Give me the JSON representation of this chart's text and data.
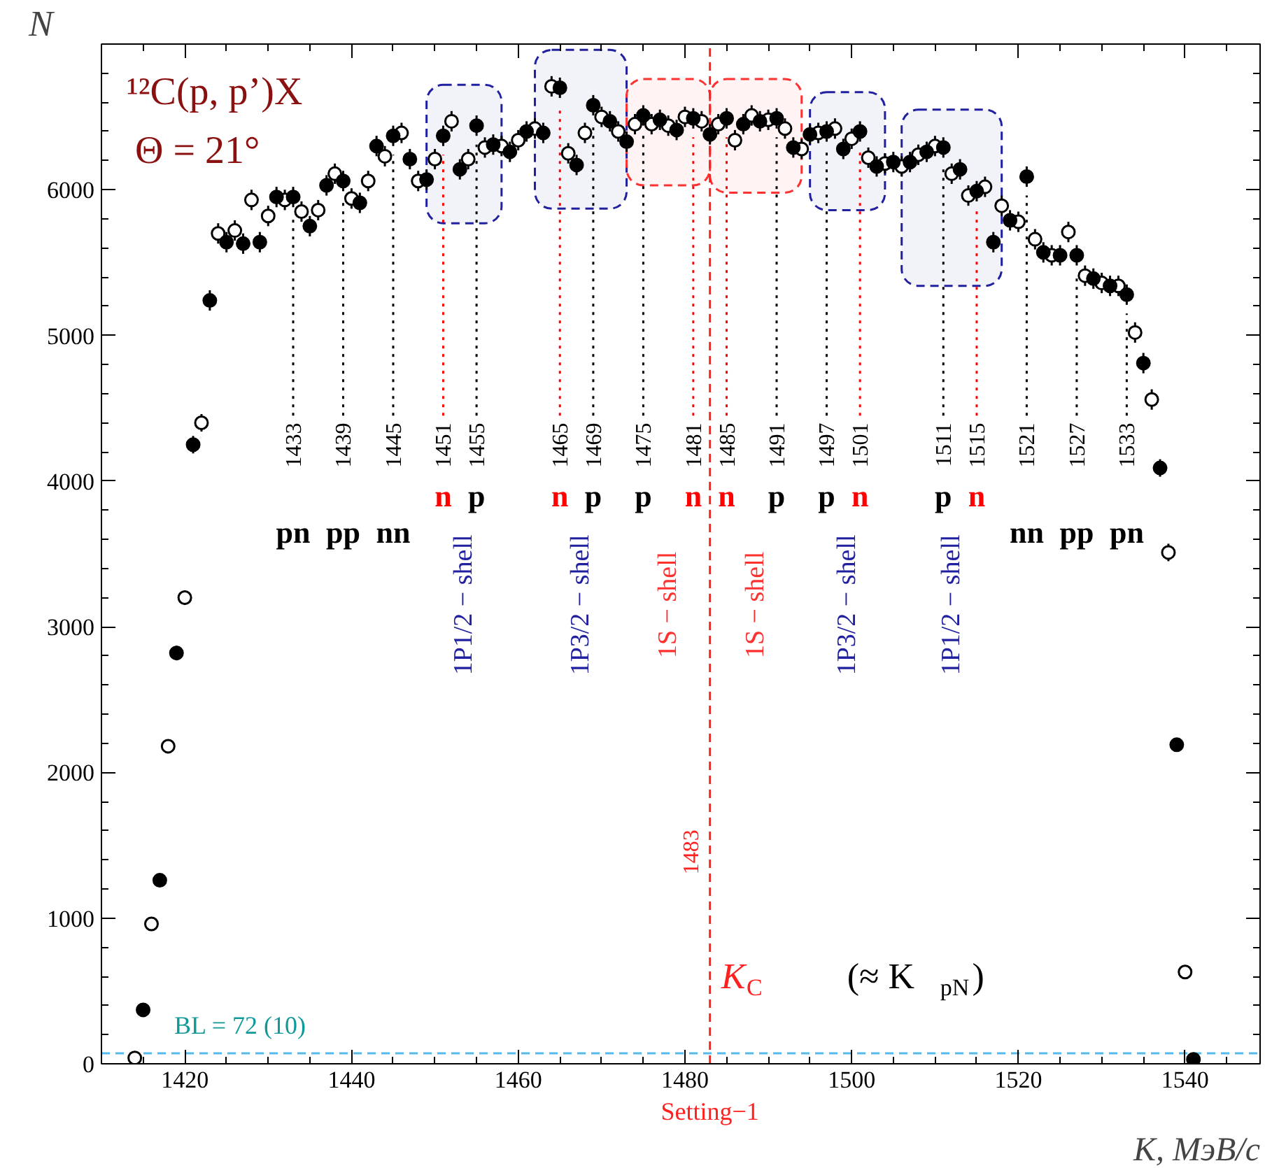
{
  "chart_data": {
    "type": "scatter",
    "title": "¹²C(p, p’)X",
    "subtitle": "Θ = 21°",
    "xlabel": "K, МэВ/c",
    "ylabel": "N",
    "xlim": [
      1410,
      1549
    ],
    "ylim": [
      0,
      7000
    ],
    "xticks": [
      1420,
      1440,
      1460,
      1480,
      1500,
      1520,
      1540
    ],
    "yticks": [
      0,
      1000,
      2000,
      3000,
      4000,
      5000,
      6000
    ],
    "marker": "circle",
    "grid": false,
    "series": [
      {
        "color": "#ffffff",
        "x": [
          1414,
          1416,
          1418,
          1420,
          1422,
          1424,
          1426,
          1428,
          1430,
          1432,
          1434,
          1436,
          1438,
          1440,
          1442,
          1444,
          1446,
          1448,
          1450,
          1452,
          1454,
          1456,
          1458,
          1460,
          1462,
          1464,
          1466,
          1468,
          1470,
          1472,
          1474,
          1476,
          1478,
          1480,
          1482,
          1484,
          1486,
          1488,
          1490,
          1492,
          1494,
          1496,
          1498,
          1500,
          1502,
          1504,
          1506,
          1508,
          1510,
          1512,
          1514,
          1516,
          1518,
          1520,
          1522,
          1524,
          1526,
          1528,
          1530,
          1532,
          1534,
          1536,
          1538,
          1540
        ],
        "values": [
          40,
          960,
          2180,
          3200,
          4400,
          5700,
          5720,
          5930,
          5820,
          5930,
          5850,
          5860,
          6110,
          5940,
          6060,
          6230,
          6390,
          6060,
          6210,
          6470,
          6210,
          6290,
          6300,
          6340,
          6420,
          6710,
          6250,
          6390,
          6500,
          6400,
          6450,
          6450,
          6440,
          6500,
          6470,
          6450,
          6340,
          6510,
          6480,
          6420,
          6280,
          6390,
          6420,
          6350,
          6220,
          6180,
          6160,
          6240,
          6300,
          6110,
          5960,
          6020,
          5890,
          5780,
          5660,
          5550,
          5710,
          5410,
          5360,
          5340,
          5020,
          4560,
          3510,
          630
        ],
        "errors": [
          20,
          30,
          40,
          50,
          60,
          70,
          70,
          70,
          70,
          70,
          70,
          70,
          70,
          70,
          70,
          70,
          70,
          70,
          70,
          70,
          70,
          70,
          70,
          70,
          70,
          70,
          70,
          70,
          70,
          70,
          70,
          70,
          70,
          70,
          70,
          70,
          70,
          70,
          70,
          70,
          70,
          70,
          70,
          70,
          70,
          70,
          70,
          70,
          70,
          70,
          70,
          70,
          70,
          70,
          70,
          70,
          70,
          70,
          70,
          70,
          70,
          70,
          60,
          30
        ]
      },
      {
        "color": "#000000",
        "x": [
          1415,
          1417,
          1419,
          1421,
          1423,
          1425,
          1427,
          1429,
          1431,
          1433,
          1435,
          1437,
          1439,
          1441,
          1443,
          1445,
          1447,
          1449,
          1451,
          1453,
          1455,
          1457,
          1459,
          1461,
          1463,
          1465,
          1467,
          1469,
          1471,
          1473,
          1475,
          1477,
          1479,
          1481,
          1483,
          1485,
          1487,
          1489,
          1491,
          1493,
          1495,
          1497,
          1499,
          1501,
          1503,
          1505,
          1507,
          1509,
          1511,
          1513,
          1515,
          1517,
          1519,
          1521,
          1523,
          1525,
          1527,
          1529,
          1531,
          1533,
          1535,
          1537,
          1539,
          1541
        ],
        "values": [
          370,
          1260,
          2820,
          4250,
          5240,
          5640,
          5630,
          5640,
          5950,
          5950,
          5750,
          6030,
          6060,
          5910,
          6300,
          6370,
          6210,
          6070,
          6370,
          6140,
          6440,
          6310,
          6260,
          6400,
          6390,
          6700,
          6170,
          6580,
          6470,
          6330,
          6510,
          6480,
          6410,
          6490,
          6380,
          6490,
          6450,
          6470,
          6490,
          6290,
          6380,
          6400,
          6280,
          6400,
          6160,
          6190,
          6190,
          6260,
          6290,
          6140,
          5990,
          5640,
          5790,
          6090,
          5570,
          5550,
          5550,
          5390,
          5340,
          5280,
          4810,
          4090,
          2190,
          30
        ],
        "errors": [
          30,
          40,
          50,
          60,
          70,
          70,
          70,
          70,
          70,
          70,
          70,
          70,
          70,
          70,
          70,
          70,
          70,
          70,
          70,
          70,
          70,
          70,
          70,
          70,
          70,
          70,
          70,
          70,
          70,
          70,
          70,
          70,
          70,
          70,
          70,
          70,
          70,
          70,
          70,
          70,
          70,
          70,
          70,
          70,
          70,
          70,
          70,
          70,
          70,
          70,
          70,
          70,
          70,
          70,
          70,
          70,
          70,
          70,
          70,
          70,
          70,
          60,
          40,
          20
        ]
      }
    ],
    "ref_lines": [
      {
        "axis": "x",
        "value": 1433,
        "label": "1433",
        "color": "#000000",
        "line_style": "dotted"
      },
      {
        "axis": "x",
        "value": 1439,
        "label": "1439",
        "color": "#000000",
        "line_style": "dotted"
      },
      {
        "axis": "x",
        "value": 1445,
        "label": "1445",
        "color": "#000000",
        "line_style": "dotted"
      },
      {
        "axis": "x",
        "value": 1451,
        "label": "1451",
        "color": "#ff0000",
        "line_style": "dotted"
      },
      {
        "axis": "x",
        "value": 1455,
        "label": "1455",
        "color": "#000000",
        "line_style": "dotted"
      },
      {
        "axis": "x",
        "value": 1465,
        "label": "1465",
        "color": "#ff0000",
        "line_style": "dotted"
      },
      {
        "axis": "x",
        "value": 1469,
        "label": "1469",
        "color": "#000000",
        "line_style": "dotted"
      },
      {
        "axis": "x",
        "value": 1475,
        "label": "1475",
        "color": "#000000",
        "line_style": "dotted"
      },
      {
        "axis": "x",
        "value": 1481,
        "label": "1481",
        "color": "#ff0000",
        "line_style": "dotted"
      },
      {
        "axis": "x",
        "value": 1485,
        "label": "1485",
        "color": "#ff0000",
        "line_style": "dotted"
      },
      {
        "axis": "x",
        "value": 1491,
        "label": "1491",
        "color": "#000000",
        "line_style": "dotted"
      },
      {
        "axis": "x",
        "value": 1497,
        "label": "1497",
        "color": "#000000",
        "line_style": "dotted"
      },
      {
        "axis": "x",
        "value": 1501,
        "label": "1501",
        "color": "#ff0000",
        "line_style": "dotted"
      },
      {
        "axis": "x",
        "value": 1511,
        "label": "1511",
        "color": "#000000",
        "line_style": "dotted"
      },
      {
        "axis": "x",
        "value": 1515,
        "label": "1515",
        "color": "#ff0000",
        "line_style": "dotted"
      },
      {
        "axis": "x",
        "value": 1521,
        "label": "1521",
        "color": "#000000",
        "line_style": "dotted"
      },
      {
        "axis": "x",
        "value": 1527,
        "label": "1527",
        "color": "#000000",
        "line_style": "dotted"
      },
      {
        "axis": "x",
        "value": 1533,
        "label": "1533",
        "color": "#000000",
        "line_style": "dotted"
      },
      {
        "axis": "x",
        "value": 1483,
        "label": "1483",
        "color": "#ff2020",
        "line_style": "dashed"
      },
      {
        "axis": "y",
        "value": 72,
        "label": "BL = 72 (10)",
        "color": "#55bbee",
        "line_style": "dashed"
      }
    ],
    "bands": [
      {
        "axis": "x",
        "from": 1449,
        "to": 1458,
        "label": "1P1/2 − shell",
        "color": "#2020a0"
      },
      {
        "axis": "x",
        "from": 1462,
        "to": 1473,
        "label": "1P3/2 − shell",
        "color": "#2020a0"
      },
      {
        "axis": "x",
        "from": 1473,
        "to": 1483,
        "label": "1S − shell",
        "color": "#ff3030"
      },
      {
        "axis": "x",
        "from": 1483,
        "to": 1494,
        "label": "1S − shell",
        "color": "#ff3030"
      },
      {
        "axis": "x",
        "from": 1495,
        "to": 1504,
        "label": "1P3/2 − shell",
        "color": "#2020a0"
      },
      {
        "axis": "x",
        "from": 1506,
        "to": 1518,
        "label": "1P1/2 − shell",
        "color": "#2020a0"
      }
    ],
    "annotations": [
      "pn",
      "pp",
      "nn",
      "n",
      "p",
      "n",
      "p",
      "p",
      "n",
      "n",
      "p",
      "p",
      "n",
      "p",
      "n",
      "nn",
      "pp",
      "pn",
      "K$_{C}$",
      "(≈ K$_{pN}$)",
      "Setting−1"
    ]
  }
}
